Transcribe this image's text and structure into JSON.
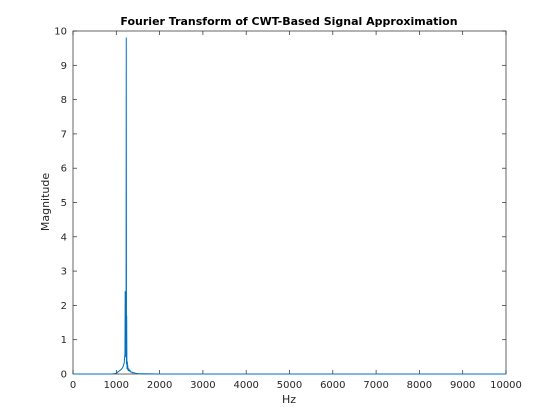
{
  "chart_data": {
    "type": "line",
    "title": "Fourier Transform of CWT-Based Signal Approximation",
    "xlabel": "Hz",
    "ylabel": "Magnitude",
    "xlim": [
      0,
      10000
    ],
    "ylim": [
      0,
      10
    ],
    "xticks": [
      0,
      1000,
      2000,
      3000,
      4000,
      5000,
      6000,
      7000,
      8000,
      9000,
      10000
    ],
    "yticks": [
      0,
      1,
      2,
      3,
      4,
      5,
      6,
      7,
      8,
      9,
      10
    ],
    "grid": false,
    "line_color": "#0072bd",
    "series": [
      {
        "x": [
          0,
          900,
          1000,
          1020,
          1040,
          1060,
          1080,
          1100,
          1120,
          1140,
          1160,
          1170,
          1180,
          1190,
          1200,
          1205,
          1210,
          1215,
          1220,
          1225,
          1230,
          1235,
          1240,
          1245,
          1250,
          1255,
          1260,
          1265,
          1270,
          1280,
          1290,
          1300,
          1320,
          1340,
          1360,
          1380,
          1400,
          1450,
          1500,
          2000,
          10000
        ],
        "y": [
          0,
          0,
          0.02,
          0.04,
          0.06,
          0.08,
          0.1,
          0.12,
          0.14,
          0.18,
          0.22,
          0.28,
          0.3,
          0.45,
          0.6,
          2.4,
          0.5,
          1.0,
          0.6,
          1.2,
          9.8,
          0.3,
          1.7,
          0.25,
          0.15,
          0.35,
          0.2,
          0.25,
          0.12,
          0.1,
          0.15,
          0.08,
          0.1,
          0.05,
          0.06,
          0.03,
          0.04,
          0.02,
          0.01,
          0,
          0
        ]
      }
    ]
  }
}
